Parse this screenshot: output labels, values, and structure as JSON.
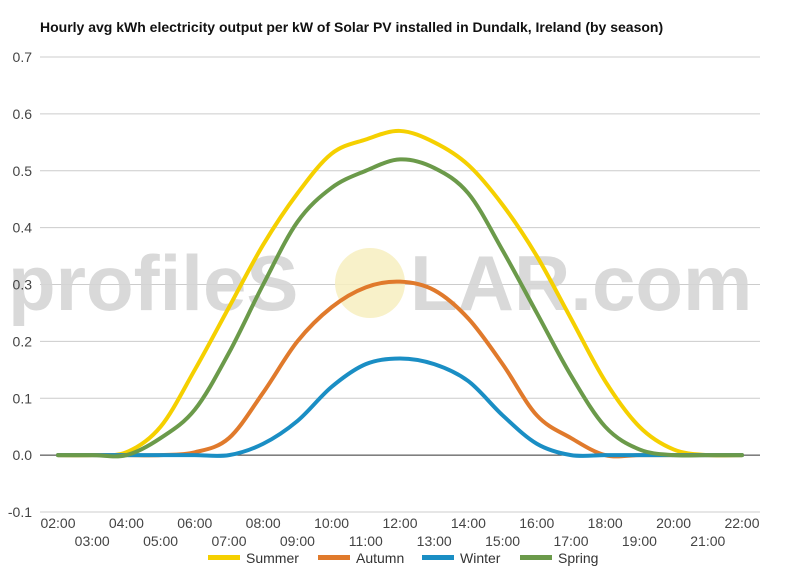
{
  "chart_data": {
    "type": "line",
    "title": "Hourly avg kWh electricity output per kW of Solar PV installed in Dundalk, Ireland (by season)",
    "watermark": {
      "text_left": "profileS",
      "text_right": "LAR.com"
    },
    "ylim": [
      -0.1,
      0.7
    ],
    "y_ticks": [
      "-0.1",
      "0.0",
      "0.1",
      "0.2",
      "0.3",
      "0.4",
      "0.5",
      "0.6",
      "0.7"
    ],
    "x_ticks_row1": [
      "02:00",
      "04:00",
      "06:00",
      "08:00",
      "10:00",
      "12:00",
      "14:00",
      "16:00",
      "18:00",
      "20:00",
      "22:00"
    ],
    "x_ticks_row2": [
      "03:00",
      "05:00",
      "07:00",
      "09:00",
      "11:00",
      "13:00",
      "15:00",
      "17:00",
      "19:00",
      "21:00"
    ],
    "x": [
      "02:00",
      "03:00",
      "04:00",
      "05:00",
      "06:00",
      "07:00",
      "08:00",
      "09:00",
      "10:00",
      "11:00",
      "12:00",
      "13:00",
      "14:00",
      "15:00",
      "16:00",
      "17:00",
      "18:00",
      "19:00",
      "20:00",
      "21:00",
      "22:00"
    ],
    "series": [
      {
        "name": "Summer",
        "color": "#f5d000",
        "values": [
          0,
          0,
          0.005,
          0.05,
          0.15,
          0.26,
          0.37,
          0.46,
          0.53,
          0.555,
          0.57,
          0.55,
          0.51,
          0.44,
          0.35,
          0.24,
          0.13,
          0.05,
          0.01,
          0,
          0
        ]
      },
      {
        "name": "Autumn",
        "color": "#e07a2c",
        "values": [
          0,
          0,
          0,
          0,
          0.005,
          0.03,
          0.11,
          0.2,
          0.26,
          0.295,
          0.305,
          0.29,
          0.24,
          0.16,
          0.07,
          0.03,
          0,
          0,
          0,
          0,
          0
        ]
      },
      {
        "name": "Winter",
        "color": "#1a8ec4",
        "values": [
          0,
          0,
          0,
          0,
          0,
          0,
          0.02,
          0.06,
          0.12,
          0.16,
          0.17,
          0.16,
          0.13,
          0.07,
          0.02,
          0,
          0,
          0,
          0,
          0,
          0
        ]
      },
      {
        "name": "Spring",
        "color": "#6b9a4a",
        "values": [
          0,
          0,
          0,
          0.03,
          0.08,
          0.18,
          0.3,
          0.41,
          0.47,
          0.5,
          0.52,
          0.505,
          0.46,
          0.36,
          0.25,
          0.14,
          0.05,
          0.01,
          0,
          0,
          0
        ]
      }
    ]
  }
}
